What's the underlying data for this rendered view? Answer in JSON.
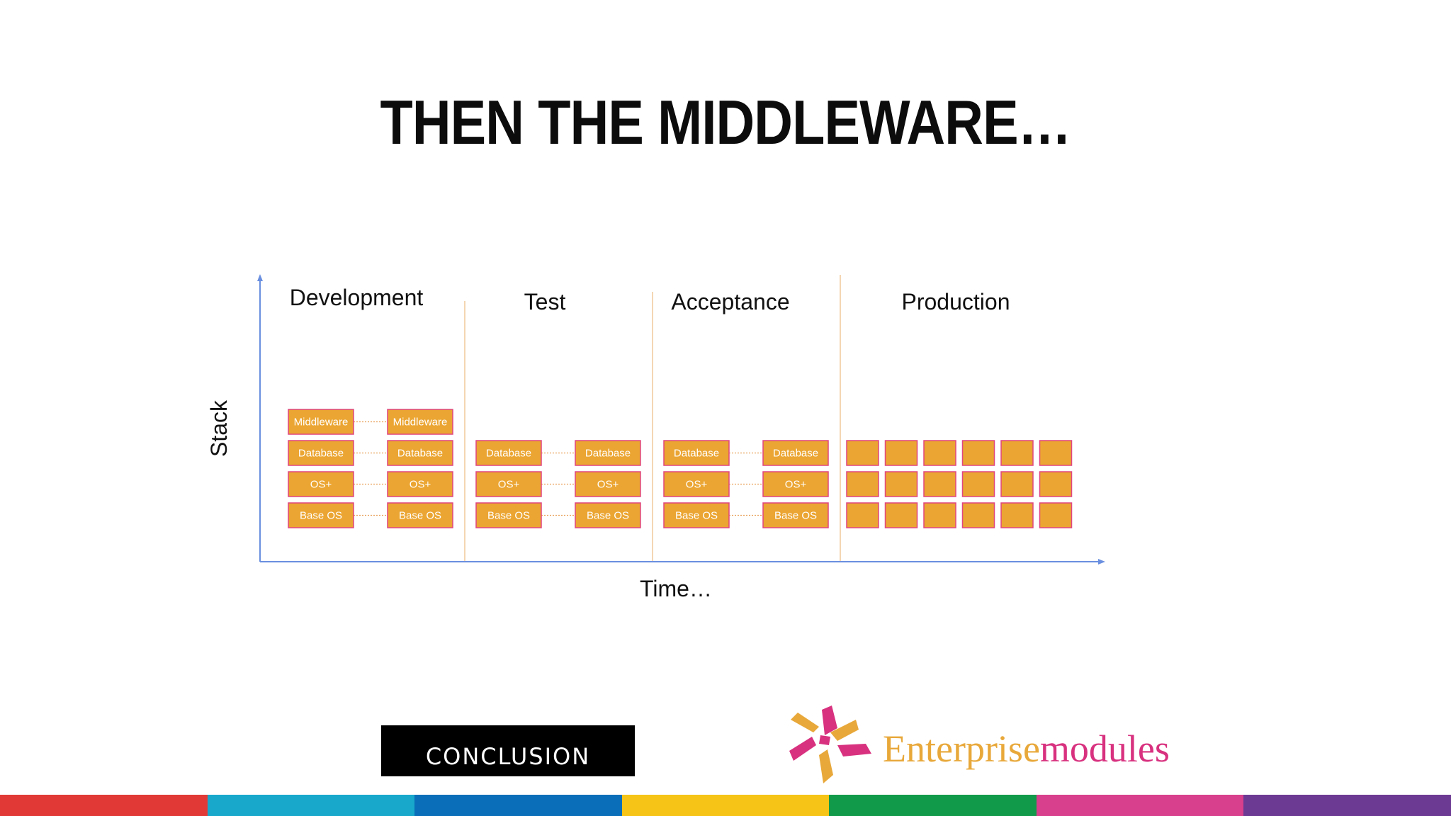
{
  "title": "THEN THE MIDDLEWARE…",
  "axes": {
    "y_label": "Stack",
    "x_label": "Time…"
  },
  "stages": [
    {
      "name": "Development",
      "servers": [
        [
          "Middleware",
          "Database",
          "OS+",
          "Base OS"
        ],
        [
          "Middleware",
          "Database",
          "OS+",
          "Base OS"
        ]
      ]
    },
    {
      "name": "Test",
      "servers": [
        [
          "Database",
          "OS+",
          "Base OS"
        ],
        [
          "Database",
          "OS+",
          "Base OS"
        ]
      ]
    },
    {
      "name": "Acceptance",
      "servers": [
        [
          "Database",
          "OS+",
          "Base OS"
        ],
        [
          "Database",
          "OS+",
          "Base OS"
        ]
      ]
    },
    {
      "name": "Production",
      "grid": {
        "columns": 6,
        "rows": 3
      }
    }
  ],
  "colors": {
    "box_fill": "#eba532",
    "box_border": "#e0457f",
    "axis": "#6a8fe0",
    "divider": "#f0c89a",
    "connector": "#e8a05a"
  },
  "logos": {
    "left": "CONCLUSION",
    "right_part1": "Enterprise",
    "right_part2": "modules"
  },
  "footer_stripes": [
    "#e13a36",
    "#17a8cc",
    "#0a6fb8",
    "#f6c416",
    "#129a4b",
    "#d83f8c",
    "#6c3a93"
  ]
}
